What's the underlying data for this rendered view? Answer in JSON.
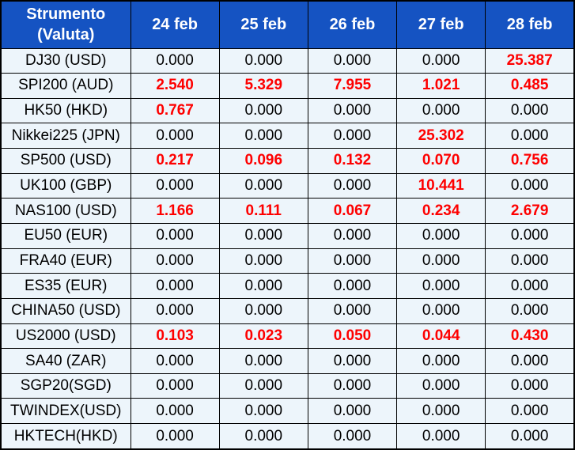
{
  "chart_data": {
    "type": "table",
    "corner_header": [
      "Strumento",
      "(Valuta)"
    ],
    "date_columns": [
      "24 feb",
      "25 feb",
      "26 feb",
      "27 feb",
      "28 feb"
    ],
    "rows": [
      {
        "instrument": "DJ30 (USD)",
        "values": [
          "0.000",
          "0.000",
          "0.000",
          "0.000",
          "25.387"
        ],
        "red": [
          false,
          false,
          false,
          false,
          true
        ]
      },
      {
        "instrument": "SPI200 (AUD)",
        "values": [
          "2.540",
          "5.329",
          "7.955",
          "1.021",
          "0.485"
        ],
        "red": [
          true,
          true,
          true,
          true,
          true
        ]
      },
      {
        "instrument": "HK50 (HKD)",
        "values": [
          "0.767",
          "0.000",
          "0.000",
          "0.000",
          "0.000"
        ],
        "red": [
          true,
          false,
          false,
          false,
          false
        ]
      },
      {
        "instrument": "Nikkei225 (JPN)",
        "values": [
          "0.000",
          "0.000",
          "0.000",
          "25.302",
          "0.000"
        ],
        "red": [
          false,
          false,
          false,
          true,
          false
        ]
      },
      {
        "instrument": "SP500 (USD)",
        "values": [
          "0.217",
          "0.096",
          "0.132",
          "0.070",
          "0.756"
        ],
        "red": [
          true,
          true,
          true,
          true,
          true
        ]
      },
      {
        "instrument": "UK100 (GBP)",
        "values": [
          "0.000",
          "0.000",
          "0.000",
          "10.441",
          "0.000"
        ],
        "red": [
          false,
          false,
          false,
          true,
          false
        ]
      },
      {
        "instrument": "NAS100 (USD)",
        "values": [
          "1.166",
          "0.111",
          "0.067",
          "0.234",
          "2.679"
        ],
        "red": [
          true,
          true,
          true,
          true,
          true
        ]
      },
      {
        "instrument": "EU50 (EUR)",
        "values": [
          "0.000",
          "0.000",
          "0.000",
          "0.000",
          "0.000"
        ],
        "red": [
          false,
          false,
          false,
          false,
          false
        ]
      },
      {
        "instrument": "FRA40 (EUR)",
        "values": [
          "0.000",
          "0.000",
          "0.000",
          "0.000",
          "0.000"
        ],
        "red": [
          false,
          false,
          false,
          false,
          false
        ]
      },
      {
        "instrument": "ES35 (EUR)",
        "values": [
          "0.000",
          "0.000",
          "0.000",
          "0.000",
          "0.000"
        ],
        "red": [
          false,
          false,
          false,
          false,
          false
        ]
      },
      {
        "instrument": "CHINA50 (USD)",
        "values": [
          "0.000",
          "0.000",
          "0.000",
          "0.000",
          "0.000"
        ],
        "red": [
          false,
          false,
          false,
          false,
          false
        ]
      },
      {
        "instrument": "US2000 (USD)",
        "values": [
          "0.103",
          "0.023",
          "0.050",
          "0.044",
          "0.430"
        ],
        "red": [
          true,
          true,
          true,
          true,
          true
        ]
      },
      {
        "instrument": "SA40 (ZAR)",
        "values": [
          "0.000",
          "0.000",
          "0.000",
          "0.000",
          "0.000"
        ],
        "red": [
          false,
          false,
          false,
          false,
          false
        ]
      },
      {
        "instrument": "SGP20(SGD)",
        "values": [
          "0.000",
          "0.000",
          "0.000",
          "0.000",
          "0.000"
        ],
        "red": [
          false,
          false,
          false,
          false,
          false
        ]
      },
      {
        "instrument": "TWINDEX(USD)",
        "values": [
          "0.000",
          "0.000",
          "0.000",
          "0.000",
          "0.000"
        ],
        "red": [
          false,
          false,
          false,
          false,
          false
        ]
      },
      {
        "instrument": "HKTECH(HKD)",
        "values": [
          "0.000",
          "0.000",
          "0.000",
          "0.000",
          "0.000"
        ],
        "red": [
          false,
          false,
          false,
          false,
          false
        ]
      }
    ]
  },
  "colors": {
    "header_bg": "#1553C2",
    "header_text": "#FFFFFF",
    "row_bg": "#EDF5FB",
    "grid_border": "#000000",
    "value_text": "#000000",
    "highlight_red": "#FE0000"
  }
}
